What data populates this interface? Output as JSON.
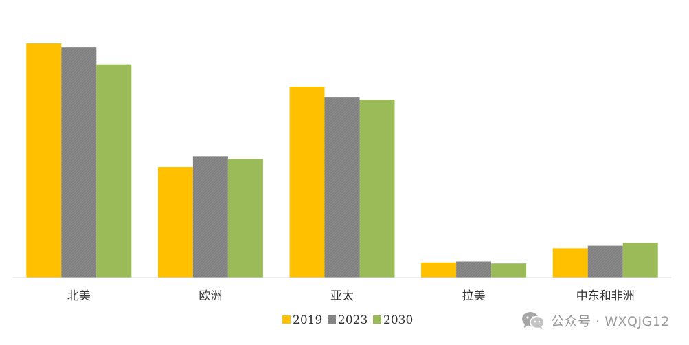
{
  "chart_data": {
    "type": "bar",
    "categories": [
      "北美",
      "欧洲",
      "亚太",
      "拉美",
      "中东和非洲"
    ],
    "series": [
      {
        "name": "2019",
        "color": "#FFC000",
        "values": [
          100,
          47.2,
          81.5,
          6.5,
          12.5
        ]
      },
      {
        "name": "2023",
        "color": "#7F7F7F",
        "values": [
          98.2,
          51.8,
          77.1,
          6.9,
          13.6
        ]
      },
      {
        "name": "2030",
        "color": "#9BBB59",
        "values": [
          91,
          50.6,
          75.9,
          6.1,
          14.9
        ]
      }
    ],
    "ylim": [
      0,
      100
    ],
    "grid": false,
    "legend": "bottom"
  },
  "watermark": {
    "text": "公众号 · WXQJG12",
    "icon": "wechat-icon"
  }
}
